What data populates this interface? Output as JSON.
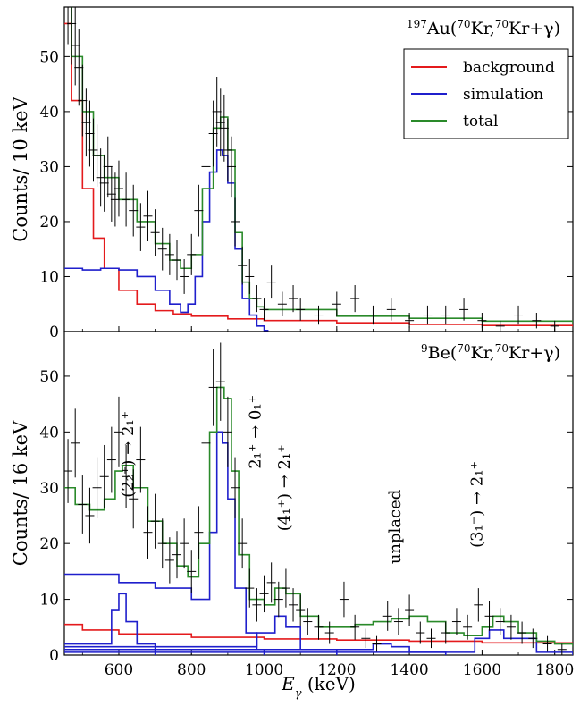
{
  "chart_data": [
    {
      "type": "line",
      "panel": "top",
      "title_parts": {
        "prefix": "197",
        "a": "Au(",
        "s1": "70",
        "b": "Kr,",
        "s2": "70",
        "c": "Kr+γ)"
      },
      "ylabel": "Counts/ 10 keV",
      "xlim": [
        450,
        1850
      ],
      "ylim": [
        0,
        59
      ],
      "yticks": [
        0,
        10,
        20,
        30,
        40,
        50
      ],
      "legend": {
        "placement": "top-right",
        "entries": [
          {
            "label": "background",
            "color": "#e41a1c"
          },
          {
            "label": "simulation",
            "color": "#1f1fcc"
          },
          {
            "label": "total",
            "color": "#2a8a2a"
          }
        ]
      },
      "series": [
        {
          "name": "background",
          "color": "#e41a1c",
          "x": [
            450,
            470,
            500,
            530,
            560,
            600,
            650,
            700,
            750,
            800,
            900,
            1000,
            1200,
            1400,
            1600,
            1850
          ],
          "y": [
            56,
            42,
            26,
            17,
            11.5,
            7.5,
            5,
            3.8,
            3.2,
            2.8,
            2.3,
            2,
            1.6,
            1.3,
            1.1,
            0.9
          ]
        },
        {
          "name": "simulation",
          "color": "#1f1fcc",
          "x": [
            450,
            500,
            550,
            600,
            650,
            700,
            740,
            770,
            790,
            810,
            830,
            850,
            870,
            885,
            900,
            920,
            940,
            960,
            980,
            1000,
            1010
          ],
          "y": [
            11.5,
            11.2,
            11.5,
            11.2,
            10,
            7.5,
            5,
            3.5,
            5,
            10,
            20,
            29,
            33,
            32,
            27,
            15,
            6,
            3,
            1,
            0.2,
            0
          ]
        },
        {
          "name": "total",
          "color": "#2a8a2a",
          "x": [
            450,
            470,
            500,
            530,
            560,
            600,
            650,
            700,
            740,
            770,
            800,
            830,
            860,
            880,
            900,
            920,
            940,
            960,
            980,
            1000,
            1200,
            1400,
            1600,
            1850
          ],
          "y": [
            60,
            50,
            40,
            32,
            28,
            24,
            20,
            16,
            13,
            11.5,
            14,
            26,
            37,
            39,
            33,
            18,
            9,
            6,
            4.5,
            4,
            2.8,
            2.4,
            1.9,
            1.5
          ]
        },
        {
          "name": "data",
          "x": [
            460,
            470,
            480,
            490,
            500,
            510,
            520,
            530,
            540,
            550,
            560,
            570,
            580,
            590,
            600,
            620,
            640,
            660,
            680,
            700,
            720,
            740,
            760,
            780,
            800,
            820,
            840,
            860,
            870,
            880,
            890,
            900,
            910,
            920,
            940,
            960,
            980,
            1000,
            1020,
            1050,
            1080,
            1100,
            1150,
            1200,
            1250,
            1300,
            1350,
            1400,
            1450,
            1500,
            1550,
            1600,
            1650,
            1700,
            1750,
            1800
          ],
          "y": [
            60,
            56,
            52,
            48,
            42,
            38,
            36,
            33,
            32,
            28,
            27,
            30,
            25,
            24,
            26,
            24,
            22,
            19,
            21,
            18,
            15,
            14,
            13,
            10,
            14,
            22,
            30,
            36,
            40,
            38,
            37,
            33,
            30,
            20,
            12,
            10,
            6,
            4,
            9,
            5,
            6,
            4,
            3,
            5,
            6,
            3,
            4,
            2,
            3,
            3,
            4,
            2,
            1,
            3,
            2,
            1
          ]
        }
      ]
    },
    {
      "type": "line",
      "panel": "bottom",
      "title_parts": {
        "prefix": "9",
        "a": "Be(",
        "s1": "70",
        "b": "Kr,",
        "s2": "70",
        "c": "Kr+γ)"
      },
      "ylabel": "Counts/ 16 keV",
      "xlabel_parts": {
        "e": "E",
        "sub": "γ",
        "unit": " (keV)"
      },
      "xlim": [
        450,
        1850
      ],
      "ylim": [
        0,
        58
      ],
      "yticks": [
        0,
        10,
        20,
        30,
        40,
        50
      ],
      "xticks": [
        600,
        800,
        1000,
        1200,
        1400,
        1600,
        1800
      ],
      "annotations": [
        {
          "text": "(2₂⁺) → 2₁⁺",
          "x": 640,
          "y": 36
        },
        {
          "text": "2₁⁺ → 0₁⁺",
          "x": 990,
          "y": 40
        },
        {
          "text": "(4₁⁺) → 2₁⁺",
          "x": 1070,
          "y": 30
        },
        {
          "text": "unplaced",
          "x": 1375,
          "y": 23
        },
        {
          "text": "(3₁⁻) → 2₁⁺",
          "x": 1600,
          "y": 27
        }
      ],
      "series": [
        {
          "name": "background",
          "color": "#e41a1c",
          "x": [
            450,
            500,
            600,
            800,
            1000,
            1200,
            1400,
            1600,
            1850
          ],
          "y": [
            5.5,
            4.5,
            3.8,
            3.2,
            2.9,
            2.7,
            2.5,
            2.2,
            2
          ]
        },
        {
          "name": "simulation 1",
          "color": "#1f1fcc",
          "x": [
            450,
            600,
            700,
            800,
            850,
            870,
            885,
            900,
            920,
            950,
            980,
            1000
          ],
          "y": [
            14.5,
            13,
            12,
            10,
            22,
            40,
            38,
            28,
            12,
            4,
            1,
            0
          ]
        },
        {
          "name": "simulation 2",
          "color": "#1f1fcc",
          "x": [
            450,
            550,
            580,
            600,
            620,
            650,
            700
          ],
          "y": [
            2,
            2,
            8,
            11,
            6,
            2,
            0
          ]
        },
        {
          "name": "simulation 3",
          "color": "#1f1fcc",
          "x": [
            450,
            900,
            980,
            1030,
            1060,
            1100,
            1200
          ],
          "y": [
            1.5,
            1.5,
            4,
            7,
            5,
            1,
            0
          ]
        },
        {
          "name": "simulation 4",
          "color": "#1f1fcc",
          "x": [
            450,
            1200,
            1300,
            1350,
            1400,
            1500
          ],
          "y": [
            1,
            1,
            2,
            1.5,
            0.5,
            0
          ]
        },
        {
          "name": "simulation 5",
          "color": "#1f1fcc",
          "x": [
            450,
            1500,
            1580,
            1620,
            1660,
            1750,
            1850
          ],
          "y": [
            0.5,
            0.5,
            3,
            4.5,
            3,
            0.5,
            0
          ]
        },
        {
          "name": "total",
          "color": "#2a8a2a",
          "x": [
            450,
            480,
            520,
            560,
            590,
            610,
            640,
            680,
            720,
            760,
            790,
            820,
            850,
            870,
            890,
            910,
            930,
            960,
            1000,
            1030,
            1060,
            1100,
            1150,
            1200,
            1250,
            1300,
            1350,
            1400,
            1450,
            1500,
            1550,
            1600,
            1630,
            1660,
            1700,
            1750,
            1800,
            1850
          ],
          "y": [
            30,
            27,
            26,
            28,
            33,
            34,
            30,
            24,
            20,
            16,
            14,
            20,
            40,
            48,
            46,
            33,
            18,
            10,
            9,
            12,
            11,
            7,
            5,
            5,
            5.5,
            6,
            6.5,
            7,
            6,
            4,
            3.5,
            5,
            7,
            6,
            4,
            2.5,
            2,
            1.5
          ]
        },
        {
          "name": "data",
          "x": [
            460,
            480,
            500,
            520,
            540,
            560,
            580,
            600,
            620,
            640,
            660,
            680,
            700,
            720,
            740,
            760,
            780,
            800,
            820,
            840,
            860,
            880,
            900,
            920,
            940,
            960,
            980,
            1000,
            1020,
            1040,
            1060,
            1080,
            1100,
            1120,
            1150,
            1180,
            1220,
            1250,
            1280,
            1310,
            1340,
            1370,
            1400,
            1430,
            1460,
            1500,
            1530,
            1560,
            1590,
            1620,
            1650,
            1680,
            1710,
            1740,
            1780,
            1820
          ],
          "y": [
            33,
            38,
            27,
            25,
            30,
            32,
            35,
            40,
            32,
            28,
            35,
            22,
            24,
            20,
            17,
            18,
            20,
            15,
            22,
            38,
            48,
            49,
            40,
            30,
            20,
            12,
            9,
            11,
            13,
            10,
            12,
            9,
            8,
            6,
            5,
            4,
            10,
            5,
            3,
            2,
            7,
            6,
            8,
            4,
            3,
            4,
            6,
            5,
            9,
            7,
            6,
            5,
            4,
            3,
            2,
            1
          ]
        }
      ]
    }
  ]
}
